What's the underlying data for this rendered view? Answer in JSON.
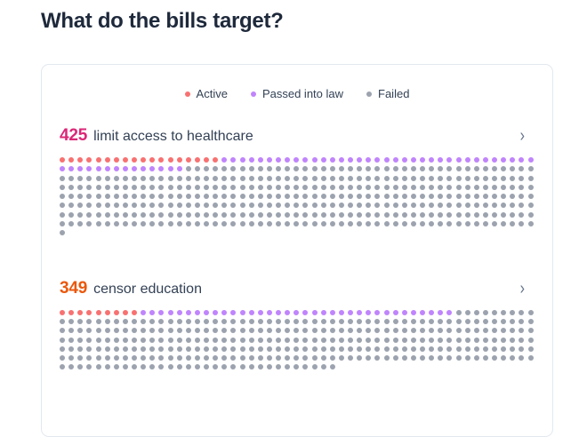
{
  "page": {
    "title": "What do the bills target?"
  },
  "legend": {
    "items": [
      {
        "label": "Active",
        "color": "#f87171"
      },
      {
        "label": "Passed into law",
        "color": "#c084fc"
      },
      {
        "label": "Failed",
        "color": "#9ca3af"
      }
    ]
  },
  "chevron_glyph": "›",
  "chart_data": [
    {
      "type": "dot-matrix",
      "title": "limit access to healthcare",
      "total": "425",
      "total_color": "#db2777",
      "dots_per_row": 53,
      "series": [
        {
          "name": "Active",
          "value": 18,
          "color": "#f87171"
        },
        {
          "name": "Passed into law",
          "value": 49,
          "color": "#c084fc"
        },
        {
          "name": "Failed",
          "value": 358,
          "color": "#9ca3af"
        }
      ]
    },
    {
      "type": "dot-matrix",
      "title": "censor education",
      "total": "349",
      "total_color": "#ea580c",
      "dots_per_row": 53,
      "series": [
        {
          "name": "Active",
          "value": 9,
          "color": "#f87171"
        },
        {
          "name": "Passed into law",
          "value": 35,
          "color": "#c084fc"
        },
        {
          "name": "Failed",
          "value": 305,
          "color": "#9ca3af"
        }
      ]
    }
  ]
}
